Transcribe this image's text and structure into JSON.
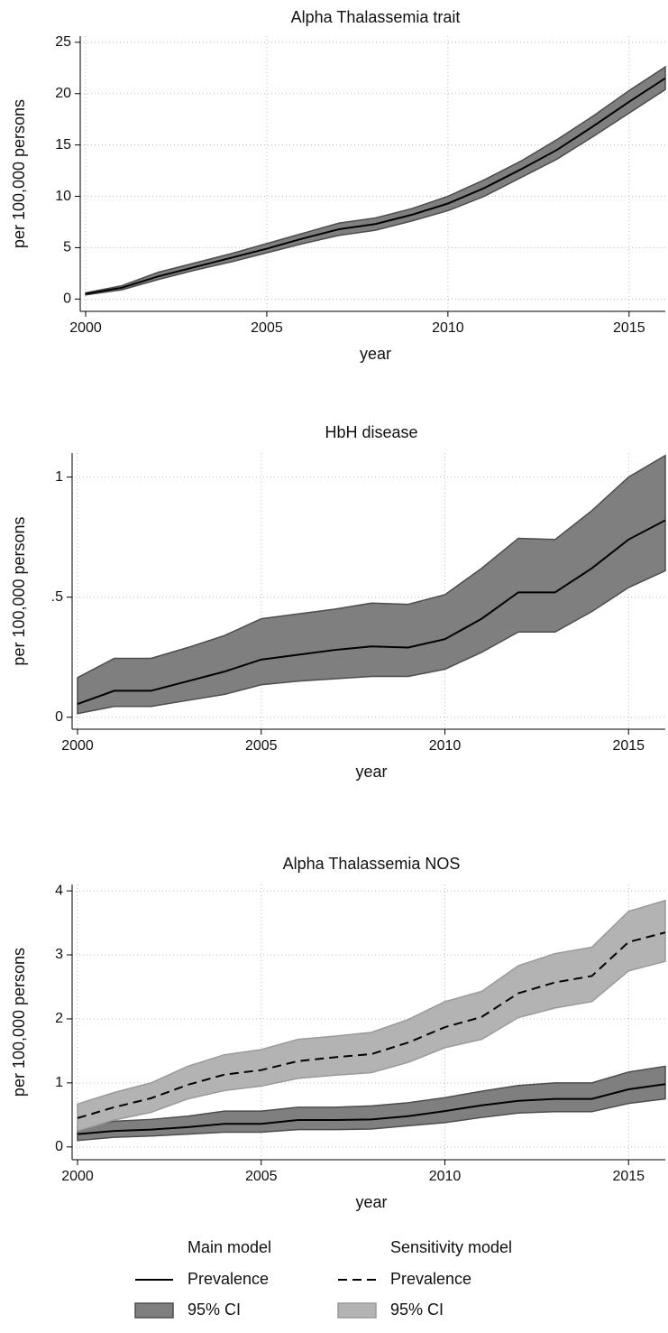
{
  "chart_data": [
    {
      "type": "line",
      "title": "Alpha Thalassemia trait",
      "xlabel": "year",
      "ylabel": "per 100,000 persons",
      "x": [
        2000,
        2001,
        2002,
        2003,
        2004,
        2005,
        2006,
        2007,
        2008,
        2009,
        2010,
        2011,
        2012,
        2013,
        2014,
        2015,
        2016
      ],
      "xlim": [
        2000,
        2016
      ],
      "xticks": [
        2000,
        2005,
        2010,
        2015
      ],
      "ylim": [
        -1.2,
        25.6
      ],
      "yticks": [
        0,
        5,
        10,
        15,
        20,
        25
      ],
      "grid": true,
      "series": [
        {
          "color": "#7f7f7f",
          "stroke": "#4d4d4d",
          "lower": [
            0.4,
            0.9,
            1.9,
            2.8,
            3.6,
            4.5,
            5.4,
            6.2,
            6.7,
            7.6,
            8.6,
            10.0,
            11.8,
            13.6,
            15.8,
            18.1,
            20.4
          ],
          "upper": [
            0.6,
            1.3,
            2.6,
            3.5,
            4.4,
            5.4,
            6.4,
            7.4,
            7.9,
            8.8,
            10.0,
            11.6,
            13.4,
            15.5,
            17.8,
            20.3,
            22.6
          ]
        },
        {
          "color": "#000000",
          "line_style": "solid",
          "values": [
            0.5,
            1.1,
            2.2,
            3.1,
            4.0,
            4.9,
            5.9,
            6.8,
            7.3,
            8.2,
            9.3,
            10.8,
            12.6,
            14.5,
            16.8,
            19.2,
            21.5
          ]
        }
      ]
    },
    {
      "type": "line",
      "title": "HbH disease",
      "xlabel": "year",
      "ylabel": "per 100,000 persons",
      "x": [
        2000,
        2001,
        2002,
        2003,
        2004,
        2005,
        2006,
        2007,
        2008,
        2009,
        2010,
        2011,
        2012,
        2013,
        2014,
        2015,
        2016
      ],
      "xlim": [
        2000,
        2016
      ],
      "xticks": [
        2000,
        2005,
        2010,
        2015
      ],
      "ylim": [
        -0.05,
        1.1
      ],
      "yticks": [
        0,
        {
          "value": 0.5,
          "label": ".5"
        },
        1
      ],
      "grid": true,
      "series": [
        {
          "color": "#7f7f7f",
          "stroke": "#4d4d4d",
          "lower": [
            0.015,
            0.045,
            0.045,
            0.07,
            0.095,
            0.135,
            0.15,
            0.16,
            0.17,
            0.17,
            0.2,
            0.27,
            0.355,
            0.355,
            0.44,
            0.54,
            0.61
          ],
          "upper": [
            0.165,
            0.245,
            0.245,
            0.29,
            0.34,
            0.41,
            0.43,
            0.45,
            0.475,
            0.47,
            0.51,
            0.62,
            0.745,
            0.74,
            0.86,
            1.0,
            1.09
          ]
        },
        {
          "color": "#000000",
          "line_style": "solid",
          "values": [
            0.055,
            0.11,
            0.11,
            0.15,
            0.19,
            0.24,
            0.26,
            0.28,
            0.295,
            0.29,
            0.325,
            0.41,
            0.52,
            0.52,
            0.62,
            0.74,
            0.82
          ]
        }
      ]
    },
    {
      "type": "line",
      "title": "Alpha Thalassemia NOS",
      "xlabel": "year",
      "ylabel": "per 100,000 persons",
      "x": [
        2000,
        2001,
        2002,
        2003,
        2004,
        2005,
        2006,
        2007,
        2008,
        2009,
        2010,
        2011,
        2012,
        2013,
        2014,
        2015,
        2016
      ],
      "xlim": [
        2000,
        2016
      ],
      "xticks": [
        2000,
        2005,
        2010,
        2015
      ],
      "ylim": [
        -0.2,
        4.1
      ],
      "yticks": [
        0,
        1,
        2,
        3,
        4
      ],
      "grid": true,
      "series_groups": [
        {
          "name": "Main model",
          "series": [
            {
              "name": "Prevalence",
              "color": "#000000",
              "line_style": "solid",
              "values": [
                0.2,
                0.25,
                0.27,
                0.31,
                0.36,
                0.36,
                0.42,
                0.42,
                0.43,
                0.48,
                0.56,
                0.65,
                0.72,
                0.75,
                0.75,
                0.9,
                0.98
              ]
            },
            {
              "name": "95% CI",
              "color": "#7f7f7f",
              "stroke": "#4d4d4d",
              "lower": [
                0.1,
                0.15,
                0.17,
                0.2,
                0.23,
                0.23,
                0.27,
                0.27,
                0.28,
                0.33,
                0.38,
                0.46,
                0.53,
                0.55,
                0.55,
                0.68,
                0.75
              ],
              "upper": [
                0.3,
                0.4,
                0.43,
                0.48,
                0.56,
                0.56,
                0.62,
                0.62,
                0.64,
                0.69,
                0.77,
                0.87,
                0.96,
                1.0,
                1.0,
                1.17,
                1.26
              ]
            }
          ]
        },
        {
          "name": "Sensitivity model",
          "series": [
            {
              "name": "Prevalence",
              "color": "#000000",
              "line_style": "dashed",
              "values": [
                0.45,
                0.62,
                0.76,
                0.97,
                1.13,
                1.2,
                1.34,
                1.4,
                1.45,
                1.63,
                1.87,
                2.03,
                2.4,
                2.57,
                2.67,
                3.2,
                3.35
              ]
            },
            {
              "name": "95% CI",
              "color": "#b3b3b3",
              "stroke": "#9a9a9a",
              "lower": [
                0.25,
                0.42,
                0.54,
                0.75,
                0.88,
                0.95,
                1.07,
                1.12,
                1.16,
                1.32,
                1.55,
                1.68,
                2.02,
                2.17,
                2.27,
                2.75,
                2.9
              ],
              "upper": [
                0.67,
                0.85,
                1.0,
                1.26,
                1.44,
                1.52,
                1.68,
                1.73,
                1.79,
                1.99,
                2.27,
                2.43,
                2.83,
                3.02,
                3.12,
                3.68,
                3.85
              ]
            }
          ]
        }
      ]
    }
  ]
}
